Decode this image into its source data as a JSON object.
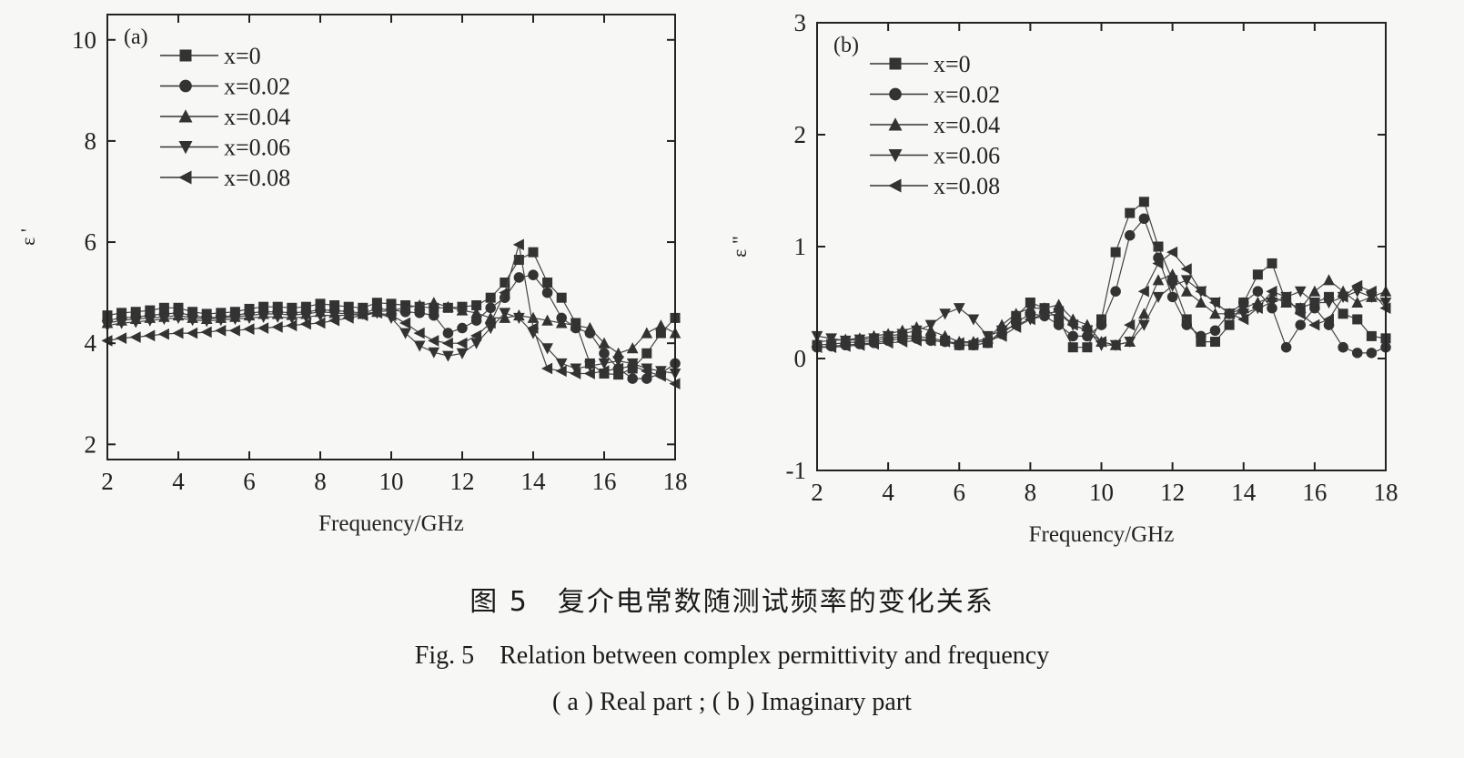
{
  "caption": {
    "cn": "图 5　复介电常数随测试频率的变化关系",
    "en": "Fig. 5　Relation between complex permittivity and frequency",
    "sub": "( a ) Real part ; ( b ) Imaginary part"
  },
  "chart_data": [
    {
      "type": "line",
      "panel_label": "(a)",
      "xlabel": "Frequency/GHz",
      "ylabel": "ε '",
      "xlim": [
        2,
        18
      ],
      "ylim": [
        1.7,
        10.5
      ],
      "xticks": [
        2,
        4,
        6,
        8,
        10,
        12,
        14,
        16,
        18
      ],
      "yticks": [
        2,
        4,
        6,
        8,
        10
      ],
      "grid": false,
      "legend_position": "top-left",
      "x": [
        2.0,
        2.4,
        2.8,
        3.2,
        3.6,
        4.0,
        4.4,
        4.8,
        5.2,
        5.6,
        6.0,
        6.4,
        6.8,
        7.2,
        7.6,
        8.0,
        8.4,
        8.8,
        9.2,
        9.6,
        10.0,
        10.4,
        10.8,
        11.2,
        11.6,
        12.0,
        12.4,
        12.8,
        13.2,
        13.6,
        14.0,
        14.4,
        14.8,
        15.2,
        15.6,
        16.0,
        16.4,
        16.8,
        17.2,
        17.6,
        18.0
      ],
      "series": [
        {
          "name": "x=0",
          "marker": "square",
          "values": [
            4.55,
            4.6,
            4.62,
            4.65,
            4.7,
            4.7,
            4.62,
            4.58,
            4.6,
            4.62,
            4.68,
            4.72,
            4.72,
            4.7,
            4.72,
            4.78,
            4.75,
            4.72,
            4.7,
            4.8,
            4.78,
            4.75,
            4.72,
            4.7,
            4.7,
            4.72,
            4.75,
            4.9,
            5.2,
            5.65,
            5.8,
            5.2,
            4.9,
            4.4,
            3.6,
            3.4,
            3.38,
            3.5,
            3.8,
            4.2,
            4.5
          ]
        },
        {
          "name": "x=0.02",
          "marker": "circle",
          "values": [
            4.45,
            4.5,
            4.52,
            4.55,
            4.58,
            4.6,
            4.55,
            4.5,
            4.52,
            4.55,
            4.6,
            4.62,
            4.62,
            4.6,
            4.62,
            4.66,
            4.65,
            4.62,
            4.6,
            4.68,
            4.66,
            4.62,
            4.6,
            4.55,
            4.2,
            4.3,
            4.45,
            4.7,
            4.9,
            5.3,
            5.35,
            5.0,
            4.5,
            4.3,
            4.2,
            3.8,
            3.5,
            3.3,
            3.3,
            3.4,
            3.6
          ]
        },
        {
          "name": "x=0.04",
          "marker": "triangle-up",
          "values": [
            4.4,
            4.45,
            4.48,
            4.5,
            4.52,
            4.55,
            4.5,
            4.48,
            4.5,
            4.52,
            4.55,
            4.58,
            4.58,
            4.56,
            4.58,
            4.62,
            4.6,
            4.58,
            4.58,
            4.62,
            4.65,
            4.7,
            4.75,
            4.8,
            4.72,
            4.65,
            4.6,
            4.5,
            4.5,
            4.55,
            4.5,
            4.45,
            4.4,
            4.35,
            4.3,
            4.0,
            3.8,
            3.9,
            4.2,
            4.35,
            4.2
          ]
        },
        {
          "name": "x=0.06",
          "marker": "triangle-down",
          "values": [
            4.35,
            4.4,
            4.42,
            4.45,
            4.48,
            4.5,
            4.46,
            4.44,
            4.46,
            4.48,
            4.5,
            4.52,
            4.52,
            4.5,
            4.52,
            4.55,
            4.55,
            4.55,
            4.58,
            4.6,
            4.5,
            4.2,
            3.95,
            3.82,
            3.75,
            3.8,
            4.0,
            4.3,
            4.6,
            4.5,
            4.2,
            3.9,
            3.6,
            3.5,
            3.55,
            3.6,
            3.65,
            3.6,
            3.5,
            3.45,
            3.4
          ]
        },
        {
          "name": "x=0.08",
          "marker": "triangle-left",
          "values": [
            4.05,
            4.1,
            4.12,
            4.15,
            4.18,
            4.2,
            4.2,
            4.22,
            4.25,
            4.25,
            4.28,
            4.3,
            4.32,
            4.35,
            4.38,
            4.4,
            4.45,
            4.5,
            4.55,
            4.6,
            4.55,
            4.4,
            4.2,
            4.05,
            4.0,
            4.0,
            4.15,
            4.4,
            5.0,
            5.95,
            4.3,
            3.5,
            3.45,
            3.4,
            3.4,
            3.45,
            3.5,
            3.55,
            3.45,
            3.35,
            3.2
          ]
        }
      ]
    },
    {
      "type": "line",
      "panel_label": "(b)",
      "xlabel": "Frequency/GHz",
      "ylabel": "ε \"",
      "xlim": [
        2,
        18
      ],
      "ylim": [
        -1,
        3
      ],
      "xticks": [
        2,
        4,
        6,
        8,
        10,
        12,
        14,
        16,
        18
      ],
      "yticks": [
        -1,
        0,
        1,
        2,
        3
      ],
      "grid": false,
      "legend_position": "top-left",
      "x": [
        2.0,
        2.4,
        2.8,
        3.2,
        3.6,
        4.0,
        4.4,
        4.8,
        5.2,
        5.6,
        6.0,
        6.4,
        6.8,
        7.2,
        7.6,
        8.0,
        8.4,
        8.8,
        9.2,
        9.6,
        10.0,
        10.4,
        10.8,
        11.2,
        11.6,
        12.0,
        12.4,
        12.8,
        13.2,
        13.6,
        14.0,
        14.4,
        14.8,
        15.2,
        15.6,
        16.0,
        16.4,
        16.8,
        17.2,
        17.6,
        18.0
      ],
      "series": [
        {
          "name": "x=0",
          "marker": "square",
          "values": [
            0.12,
            0.13,
            0.14,
            0.15,
            0.16,
            0.18,
            0.2,
            0.2,
            0.18,
            0.16,
            0.12,
            0.12,
            0.14,
            0.25,
            0.38,
            0.5,
            0.45,
            0.35,
            0.1,
            0.1,
            0.35,
            0.95,
            1.3,
            1.4,
            1.0,
            0.7,
            0.35,
            0.15,
            0.15,
            0.3,
            0.5,
            0.75,
            0.85,
            0.5,
            0.45,
            0.5,
            0.55,
            0.4,
            0.35,
            0.2,
            0.18
          ]
        },
        {
          "name": "x=0.02",
          "marker": "circle",
          "values": [
            0.1,
            0.11,
            0.12,
            0.13,
            0.14,
            0.16,
            0.18,
            0.18,
            0.16,
            0.15,
            0.12,
            0.12,
            0.14,
            0.22,
            0.32,
            0.4,
            0.38,
            0.3,
            0.2,
            0.2,
            0.3,
            0.6,
            1.1,
            1.25,
            0.9,
            0.55,
            0.3,
            0.2,
            0.25,
            0.4,
            0.5,
            0.6,
            0.45,
            0.1,
            0.3,
            0.45,
            0.3,
            0.1,
            0.05,
            0.05,
            0.1
          ]
        },
        {
          "name": "x=0.04",
          "marker": "triangle-up",
          "values": [
            0.15,
            0.16,
            0.17,
            0.18,
            0.2,
            0.22,
            0.25,
            0.28,
            0.25,
            0.2,
            0.15,
            0.15,
            0.18,
            0.3,
            0.4,
            0.45,
            0.45,
            0.48,
            0.35,
            0.3,
            0.15,
            0.12,
            0.15,
            0.4,
            0.7,
            0.75,
            0.6,
            0.5,
            0.4,
            0.4,
            0.45,
            0.5,
            0.55,
            0.5,
            0.45,
            0.6,
            0.7,
            0.6,
            0.5,
            0.55,
            0.6
          ]
        },
        {
          "name": "x=0.06",
          "marker": "triangle-down",
          "values": [
            0.2,
            0.18,
            0.16,
            0.17,
            0.18,
            0.2,
            0.22,
            0.25,
            0.3,
            0.4,
            0.45,
            0.35,
            0.2,
            0.25,
            0.3,
            0.35,
            0.38,
            0.4,
            0.3,
            0.25,
            0.12,
            0.12,
            0.15,
            0.3,
            0.55,
            0.65,
            0.7,
            0.6,
            0.5,
            0.4,
            0.4,
            0.45,
            0.5,
            0.55,
            0.6,
            0.5,
            0.5,
            0.55,
            0.6,
            0.55,
            0.5
          ]
        },
        {
          "name": "x=0.08",
          "marker": "triangle-left",
          "values": [
            0.1,
            0.1,
            0.11,
            0.12,
            0.13,
            0.14,
            0.15,
            0.16,
            0.16,
            0.15,
            0.14,
            0.14,
            0.16,
            0.2,
            0.28,
            0.35,
            0.4,
            0.42,
            0.3,
            0.25,
            0.15,
            0.12,
            0.3,
            0.6,
            0.85,
            0.95,
            0.8,
            0.6,
            0.5,
            0.4,
            0.35,
            0.45,
            0.6,
            0.55,
            0.4,
            0.3,
            0.35,
            0.55,
            0.65,
            0.6,
            0.45
          ]
        }
      ]
    }
  ]
}
